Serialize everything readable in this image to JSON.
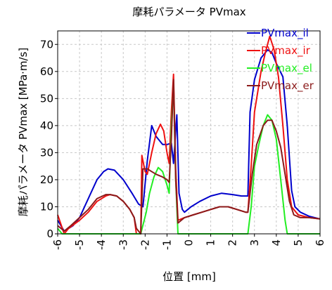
{
  "chart_data": {
    "type": "line",
    "title": "摩耗パラメータ PVmax",
    "xlabel": "位置 [mm]",
    "ylabel": "摩耗パラメータ PVmax [MPa·m/s]",
    "xlim": [
      -6,
      6
    ],
    "ylim": [
      0,
      75
    ],
    "x_ticks": [
      "-6",
      "-5",
      "-4",
      "-3",
      "-2",
      "-1",
      "0",
      "1",
      "2",
      "3",
      "4",
      "5",
      "6"
    ],
    "y_ticks": [
      "0",
      "10",
      "20",
      "30",
      "40",
      "50",
      "60",
      "70"
    ],
    "grid": true,
    "legend_position": "top-right",
    "series": [
      {
        "name": "PVmax_il",
        "color": "#0000cc",
        "points": [
          [
            -6.0,
            5
          ],
          [
            -5.7,
            1
          ],
          [
            -5.3,
            3
          ],
          [
            -5.0,
            6
          ],
          [
            -4.6,
            13
          ],
          [
            -4.2,
            20
          ],
          [
            -3.9,
            23
          ],
          [
            -3.7,
            24
          ],
          [
            -3.4,
            23.5
          ],
          [
            -3.0,
            20
          ],
          [
            -2.6,
            15
          ],
          [
            -2.3,
            11
          ],
          [
            -2.1,
            10
          ],
          [
            -1.9,
            27
          ],
          [
            -1.7,
            40
          ],
          [
            -1.5,
            36
          ],
          [
            -1.2,
            33
          ],
          [
            -1.0,
            33
          ],
          [
            -0.8,
            33.5
          ],
          [
            -0.7,
            26
          ],
          [
            -0.55,
            44
          ],
          [
            -0.45,
            15
          ],
          [
            -0.3,
            9
          ],
          [
            -0.2,
            8
          ],
          [
            0.1,
            10
          ],
          [
            0.5,
            12
          ],
          [
            1.0,
            14
          ],
          [
            1.5,
            15
          ],
          [
            2.0,
            14.5
          ],
          [
            2.4,
            14
          ],
          [
            2.7,
            14
          ],
          [
            2.8,
            45
          ],
          [
            3.0,
            57
          ],
          [
            3.3,
            65
          ],
          [
            3.6,
            68
          ],
          [
            3.8,
            67
          ],
          [
            4.0,
            63
          ],
          [
            4.3,
            58
          ],
          [
            4.5,
            40
          ],
          [
            4.7,
            16
          ],
          [
            4.85,
            10
          ],
          [
            5.1,
            8
          ],
          [
            5.5,
            6.5
          ],
          [
            6.0,
            5.5
          ]
        ]
      },
      {
        "name": "PVmax_ir",
        "color": "#ee1111",
        "points": [
          [
            -6.0,
            7
          ],
          [
            -5.7,
            0
          ],
          [
            -5.5,
            2
          ],
          [
            -5.0,
            5
          ],
          [
            -4.6,
            8
          ],
          [
            -4.2,
            12
          ],
          [
            -3.8,
            14
          ],
          [
            -3.6,
            14.5
          ],
          [
            -3.3,
            14
          ],
          [
            -3.0,
            12
          ],
          [
            -2.7,
            9
          ],
          [
            -2.5,
            6
          ],
          [
            -2.4,
            0
          ],
          [
            -2.2,
            0
          ],
          [
            -2.15,
            29
          ],
          [
            -2.0,
            23
          ],
          [
            -1.9,
            22
          ],
          [
            -1.7,
            30
          ],
          [
            -1.5,
            37
          ],
          [
            -1.3,
            40.5
          ],
          [
            -1.15,
            38
          ],
          [
            -1.0,
            30
          ],
          [
            -0.9,
            26
          ],
          [
            -0.8,
            45
          ],
          [
            -0.7,
            59
          ],
          [
            -0.6,
            24
          ],
          [
            -0.5,
            5
          ],
          [
            -0.2,
            6
          ],
          [
            0.2,
            7
          ],
          [
            0.6,
            8
          ],
          [
            1.0,
            9
          ],
          [
            1.4,
            10
          ],
          [
            1.8,
            10
          ],
          [
            2.2,
            9
          ],
          [
            2.6,
            8
          ],
          [
            2.7,
            8
          ],
          [
            2.85,
            25
          ],
          [
            3.0,
            45
          ],
          [
            3.3,
            60
          ],
          [
            3.5,
            67
          ],
          [
            3.7,
            73
          ],
          [
            3.9,
            68
          ],
          [
            4.1,
            58
          ],
          [
            4.3,
            40
          ],
          [
            4.5,
            20
          ],
          [
            4.7,
            10
          ],
          [
            5.0,
            7
          ],
          [
            5.5,
            6
          ],
          [
            6.0,
            5.5
          ]
        ]
      },
      {
        "name": "PVmax_el",
        "color": "#22ee22",
        "points": [
          [
            -6.0,
            2
          ],
          [
            -5.8,
            0
          ],
          [
            -5.6,
            0
          ],
          [
            -2.2,
            0
          ],
          [
            -1.95,
            8
          ],
          [
            -1.8,
            15
          ],
          [
            -1.6,
            21
          ],
          [
            -1.4,
            24.5
          ],
          [
            -1.2,
            23
          ],
          [
            -1.0,
            18
          ],
          [
            -0.9,
            15
          ],
          [
            -0.8,
            40
          ],
          [
            -0.7,
            55
          ],
          [
            -0.6,
            20
          ],
          [
            -0.5,
            0
          ],
          [
            2.7,
            0
          ],
          [
            2.85,
            10
          ],
          [
            3.0,
            25
          ],
          [
            3.2,
            33
          ],
          [
            3.4,
            40
          ],
          [
            3.6,
            44
          ],
          [
            3.8,
            42
          ],
          [
            4.0,
            35
          ],
          [
            4.2,
            20
          ],
          [
            4.4,
            5
          ],
          [
            4.5,
            0
          ],
          [
            6.0,
            0
          ]
        ]
      },
      {
        "name": "PVmax_er",
        "color": "#8b1a1a",
        "points": [
          [
            -6.0,
            3
          ],
          [
            -5.7,
            1
          ],
          [
            -5.4,
            3
          ],
          [
            -5.0,
            6
          ],
          [
            -4.6,
            9
          ],
          [
            -4.2,
            13
          ],
          [
            -3.8,
            14.5
          ],
          [
            -3.6,
            14.5
          ],
          [
            -3.3,
            14
          ],
          [
            -3.0,
            12
          ],
          [
            -2.7,
            9
          ],
          [
            -2.5,
            6
          ],
          [
            -2.4,
            2
          ],
          [
            -2.2,
            0
          ],
          [
            -2.1,
            24
          ],
          [
            -1.9,
            24
          ],
          [
            -1.5,
            22
          ],
          [
            -1.2,
            21
          ],
          [
            -1.0,
            20
          ],
          [
            -0.9,
            19
          ],
          [
            -0.8,
            35
          ],
          [
            -0.7,
            57
          ],
          [
            -0.6,
            20
          ],
          [
            -0.5,
            4
          ],
          [
            -0.2,
            6
          ],
          [
            0.2,
            7
          ],
          [
            0.6,
            8
          ],
          [
            1.0,
            9
          ],
          [
            1.4,
            10
          ],
          [
            1.8,
            10
          ],
          [
            2.2,
            9
          ],
          [
            2.6,
            8
          ],
          [
            2.7,
            8
          ],
          [
            2.9,
            22
          ],
          [
            3.1,
            33
          ],
          [
            3.4,
            40
          ],
          [
            3.6,
            42
          ],
          [
            3.8,
            42
          ],
          [
            4.0,
            38
          ],
          [
            4.2,
            32
          ],
          [
            4.4,
            22
          ],
          [
            4.6,
            12
          ],
          [
            4.8,
            7
          ],
          [
            5.1,
            6
          ],
          [
            5.5,
            6
          ],
          [
            6.0,
            5.5
          ]
        ]
      }
    ]
  }
}
